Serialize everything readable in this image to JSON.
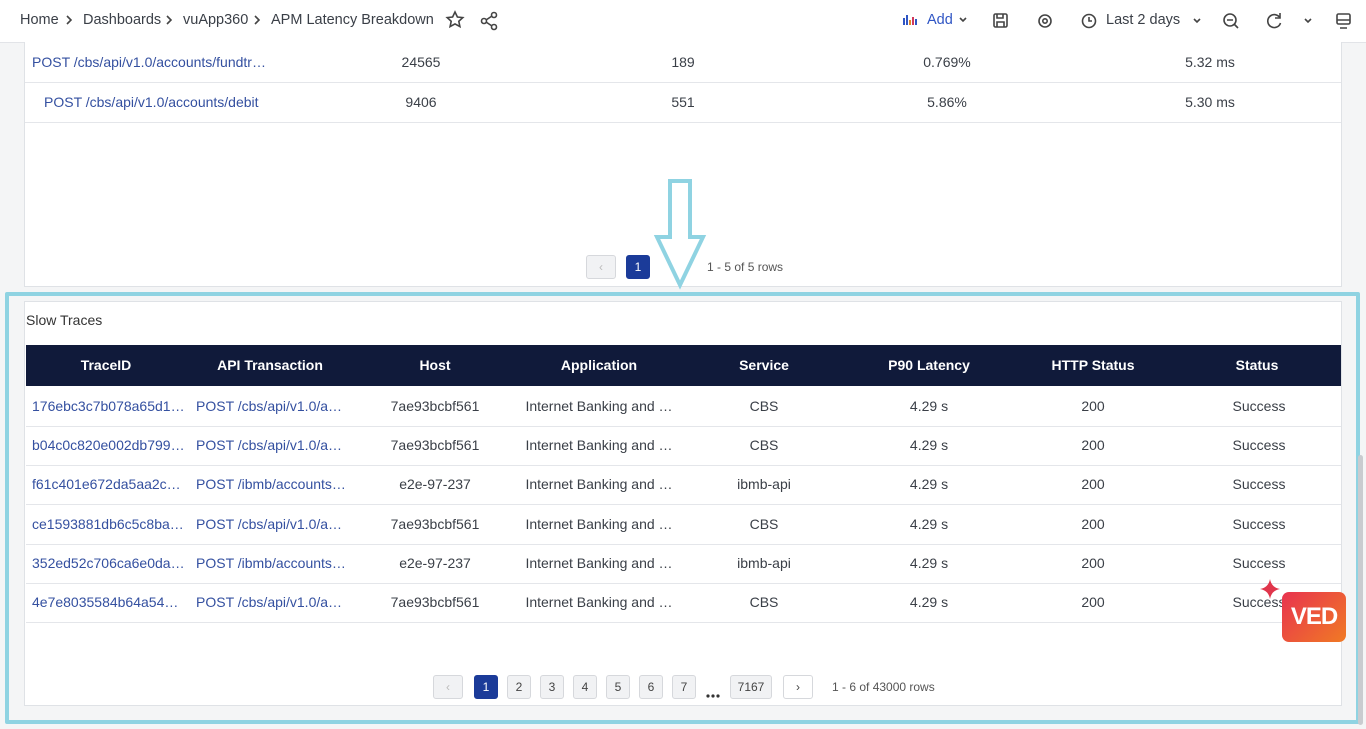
{
  "breadcrumb": [
    "Home",
    "Dashboards",
    "vuApp360",
    "APM Latency Breakdown"
  ],
  "toolbar": {
    "add": "Add",
    "time_range": "Last 2 days"
  },
  "endpoints_table": {
    "rows": [
      [
        "POST /cbs/api/v1.0/accounts/fundtr…",
        "24565",
        "189",
        "0.769%",
        "5.32 ms"
      ],
      [
        "POST /cbs/api/v1.0/accounts/debit",
        "9406",
        "551",
        "5.86%",
        "5.30 ms"
      ]
    ],
    "pagination": {
      "pages": [
        "1"
      ],
      "summary": "1 - 5 of 5 rows"
    }
  },
  "slow_traces": {
    "title": "Slow Traces",
    "columns": [
      "TraceID",
      "API Transaction",
      "Host",
      "Application",
      "Service",
      "P90 Latency",
      "HTTP Status",
      "Status"
    ],
    "rows": [
      [
        "176ebc3c7b078a65d1…",
        "POST /cbs/api/v1.0/a…",
        "7ae93bcbf561",
        "Internet Banking and …",
        "CBS",
        "4.29 s",
        "200",
        "Success"
      ],
      [
        "b04c0c820e002db799…",
        "POST /cbs/api/v1.0/a…",
        "7ae93bcbf561",
        "Internet Banking and …",
        "CBS",
        "4.29 s",
        "200",
        "Success"
      ],
      [
        "f61c401e672da5aa2c…",
        "POST /ibmb/accounts…",
        "e2e-97-237",
        "Internet Banking and …",
        "ibmb-api",
        "4.29 s",
        "200",
        "Success"
      ],
      [
        "ce1593881db6c5c8ba…",
        "POST /cbs/api/v1.0/a…",
        "7ae93bcbf561",
        "Internet Banking and …",
        "CBS",
        "4.29 s",
        "200",
        "Success"
      ],
      [
        "352ed52c706ca6e0da…",
        "POST /ibmb/accounts…",
        "e2e-97-237",
        "Internet Banking and …",
        "ibmb-api",
        "4.29 s",
        "200",
        "Success"
      ],
      [
        "4e7e8035584b64a54…",
        "POST /cbs/api/v1.0/a…",
        "7ae93bcbf561",
        "Internet Banking and …",
        "CBS",
        "4.29 s",
        "200",
        "Success"
      ]
    ],
    "pagination": {
      "pages": [
        "1",
        "2",
        "3",
        "4",
        "5",
        "6",
        "7",
        "7167"
      ],
      "summary": "1 - 6 of 43000 rows"
    }
  },
  "badge": "VED"
}
